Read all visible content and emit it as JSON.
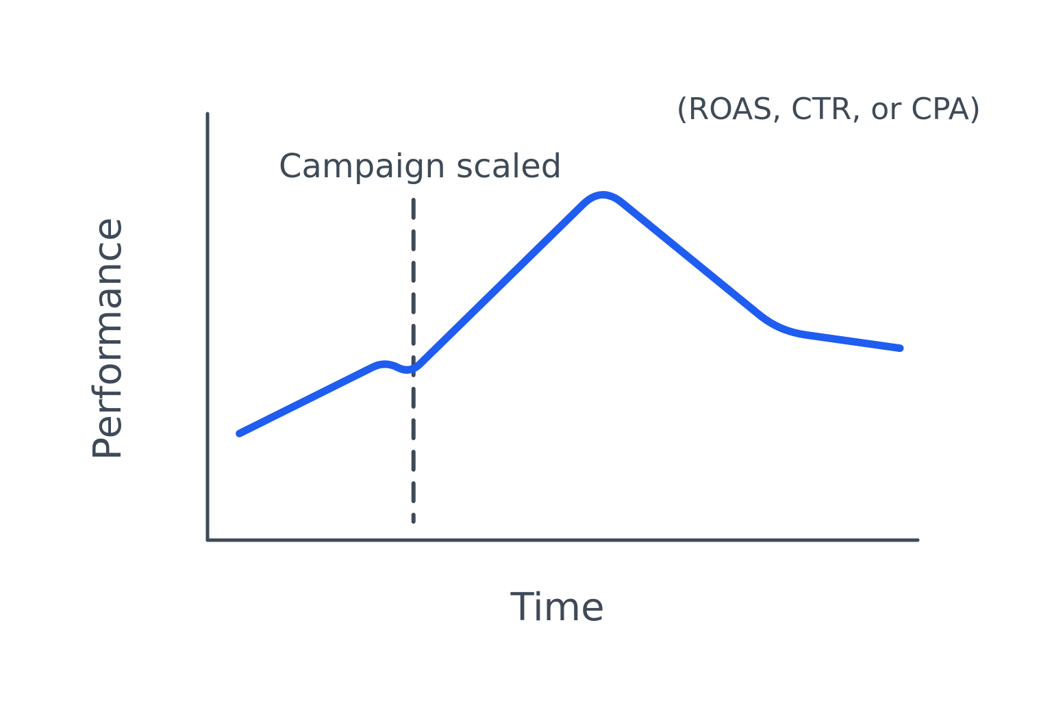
{
  "chart_data": {
    "type": "line",
    "subtitle": "(ROAS, CTR, or CPA)",
    "xlabel": "Time",
    "ylabel": "Performance",
    "xlim": [
      0,
      10
    ],
    "ylim": [
      0,
      10
    ],
    "grid": false,
    "legend": "none",
    "colors": {
      "line": "#1f5cf0",
      "axes": "#3f4a57",
      "text": "#3f4a57"
    },
    "series": [
      {
        "values": [
          {
            "x": 0.45,
            "y": 2.5
          },
          {
            "x": 2.5,
            "y": 4.2
          },
          {
            "x": 2.85,
            "y": 3.9
          },
          {
            "x": 5.55,
            "y": 8.3
          },
          {
            "x": 8.05,
            "y": 4.9
          },
          {
            "x": 9.75,
            "y": 4.5
          }
        ]
      }
    ],
    "annotations": [
      {
        "text": "Campaign scaled",
        "x": 2.9,
        "type": "vertical-dashed-line"
      }
    ]
  }
}
